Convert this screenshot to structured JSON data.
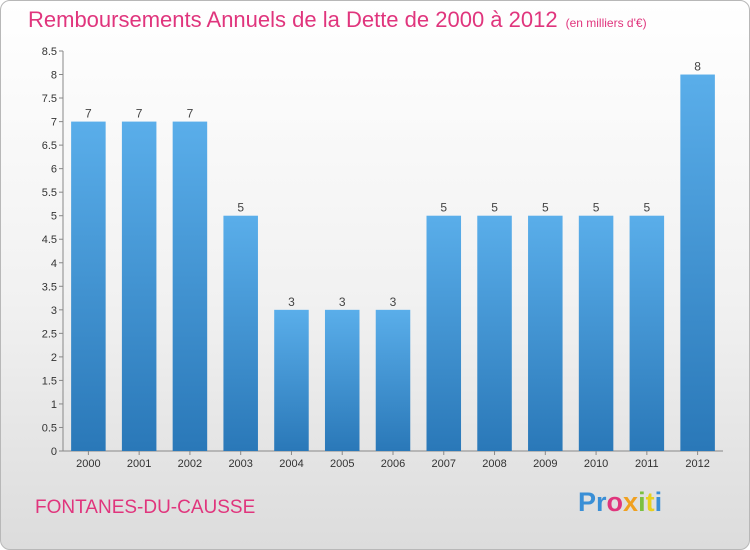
{
  "chart_data": {
    "type": "bar",
    "title": "Remboursements Annuels de la Dette de 2000 à 2012",
    "subtitle": "(en milliers d'€)",
    "categories": [
      "2000",
      "2001",
      "2002",
      "2003",
      "2004",
      "2005",
      "2006",
      "2007",
      "2008",
      "2009",
      "2010",
      "2011",
      "2012"
    ],
    "values": [
      7,
      7,
      7,
      5,
      3,
      3,
      3,
      5,
      5,
      5,
      5,
      5,
      8
    ],
    "value_labels": [
      "7",
      "7",
      "7",
      "5",
      "3",
      "3",
      "3",
      "5",
      "5",
      "5",
      "5",
      "5",
      "8"
    ],
    "ylim": [
      0,
      8.5
    ],
    "yticks": [
      0,
      0.5,
      1,
      1.5,
      2,
      2.5,
      3,
      3.5,
      4,
      4.5,
      5,
      5.5,
      6,
      6.5,
      7,
      7.5,
      8,
      8.5
    ],
    "ytick_labels": [
      "0",
      "0.5",
      "1",
      "1.5",
      "2",
      "2.5",
      "3",
      "3.5",
      "4",
      "4.5",
      "5",
      "5.5",
      "6",
      "6.5",
      "7",
      "7.5",
      "8",
      "8.5"
    ],
    "grid": false,
    "legend": "none",
    "bar_color_top": "#5aaeea",
    "bar_color_bottom": "#2a78b8"
  },
  "footer": {
    "commune": "FONTANES-DU-CAUSSE",
    "logo": [
      "Pr",
      "o",
      "x",
      "i",
      "t",
      "i"
    ]
  }
}
